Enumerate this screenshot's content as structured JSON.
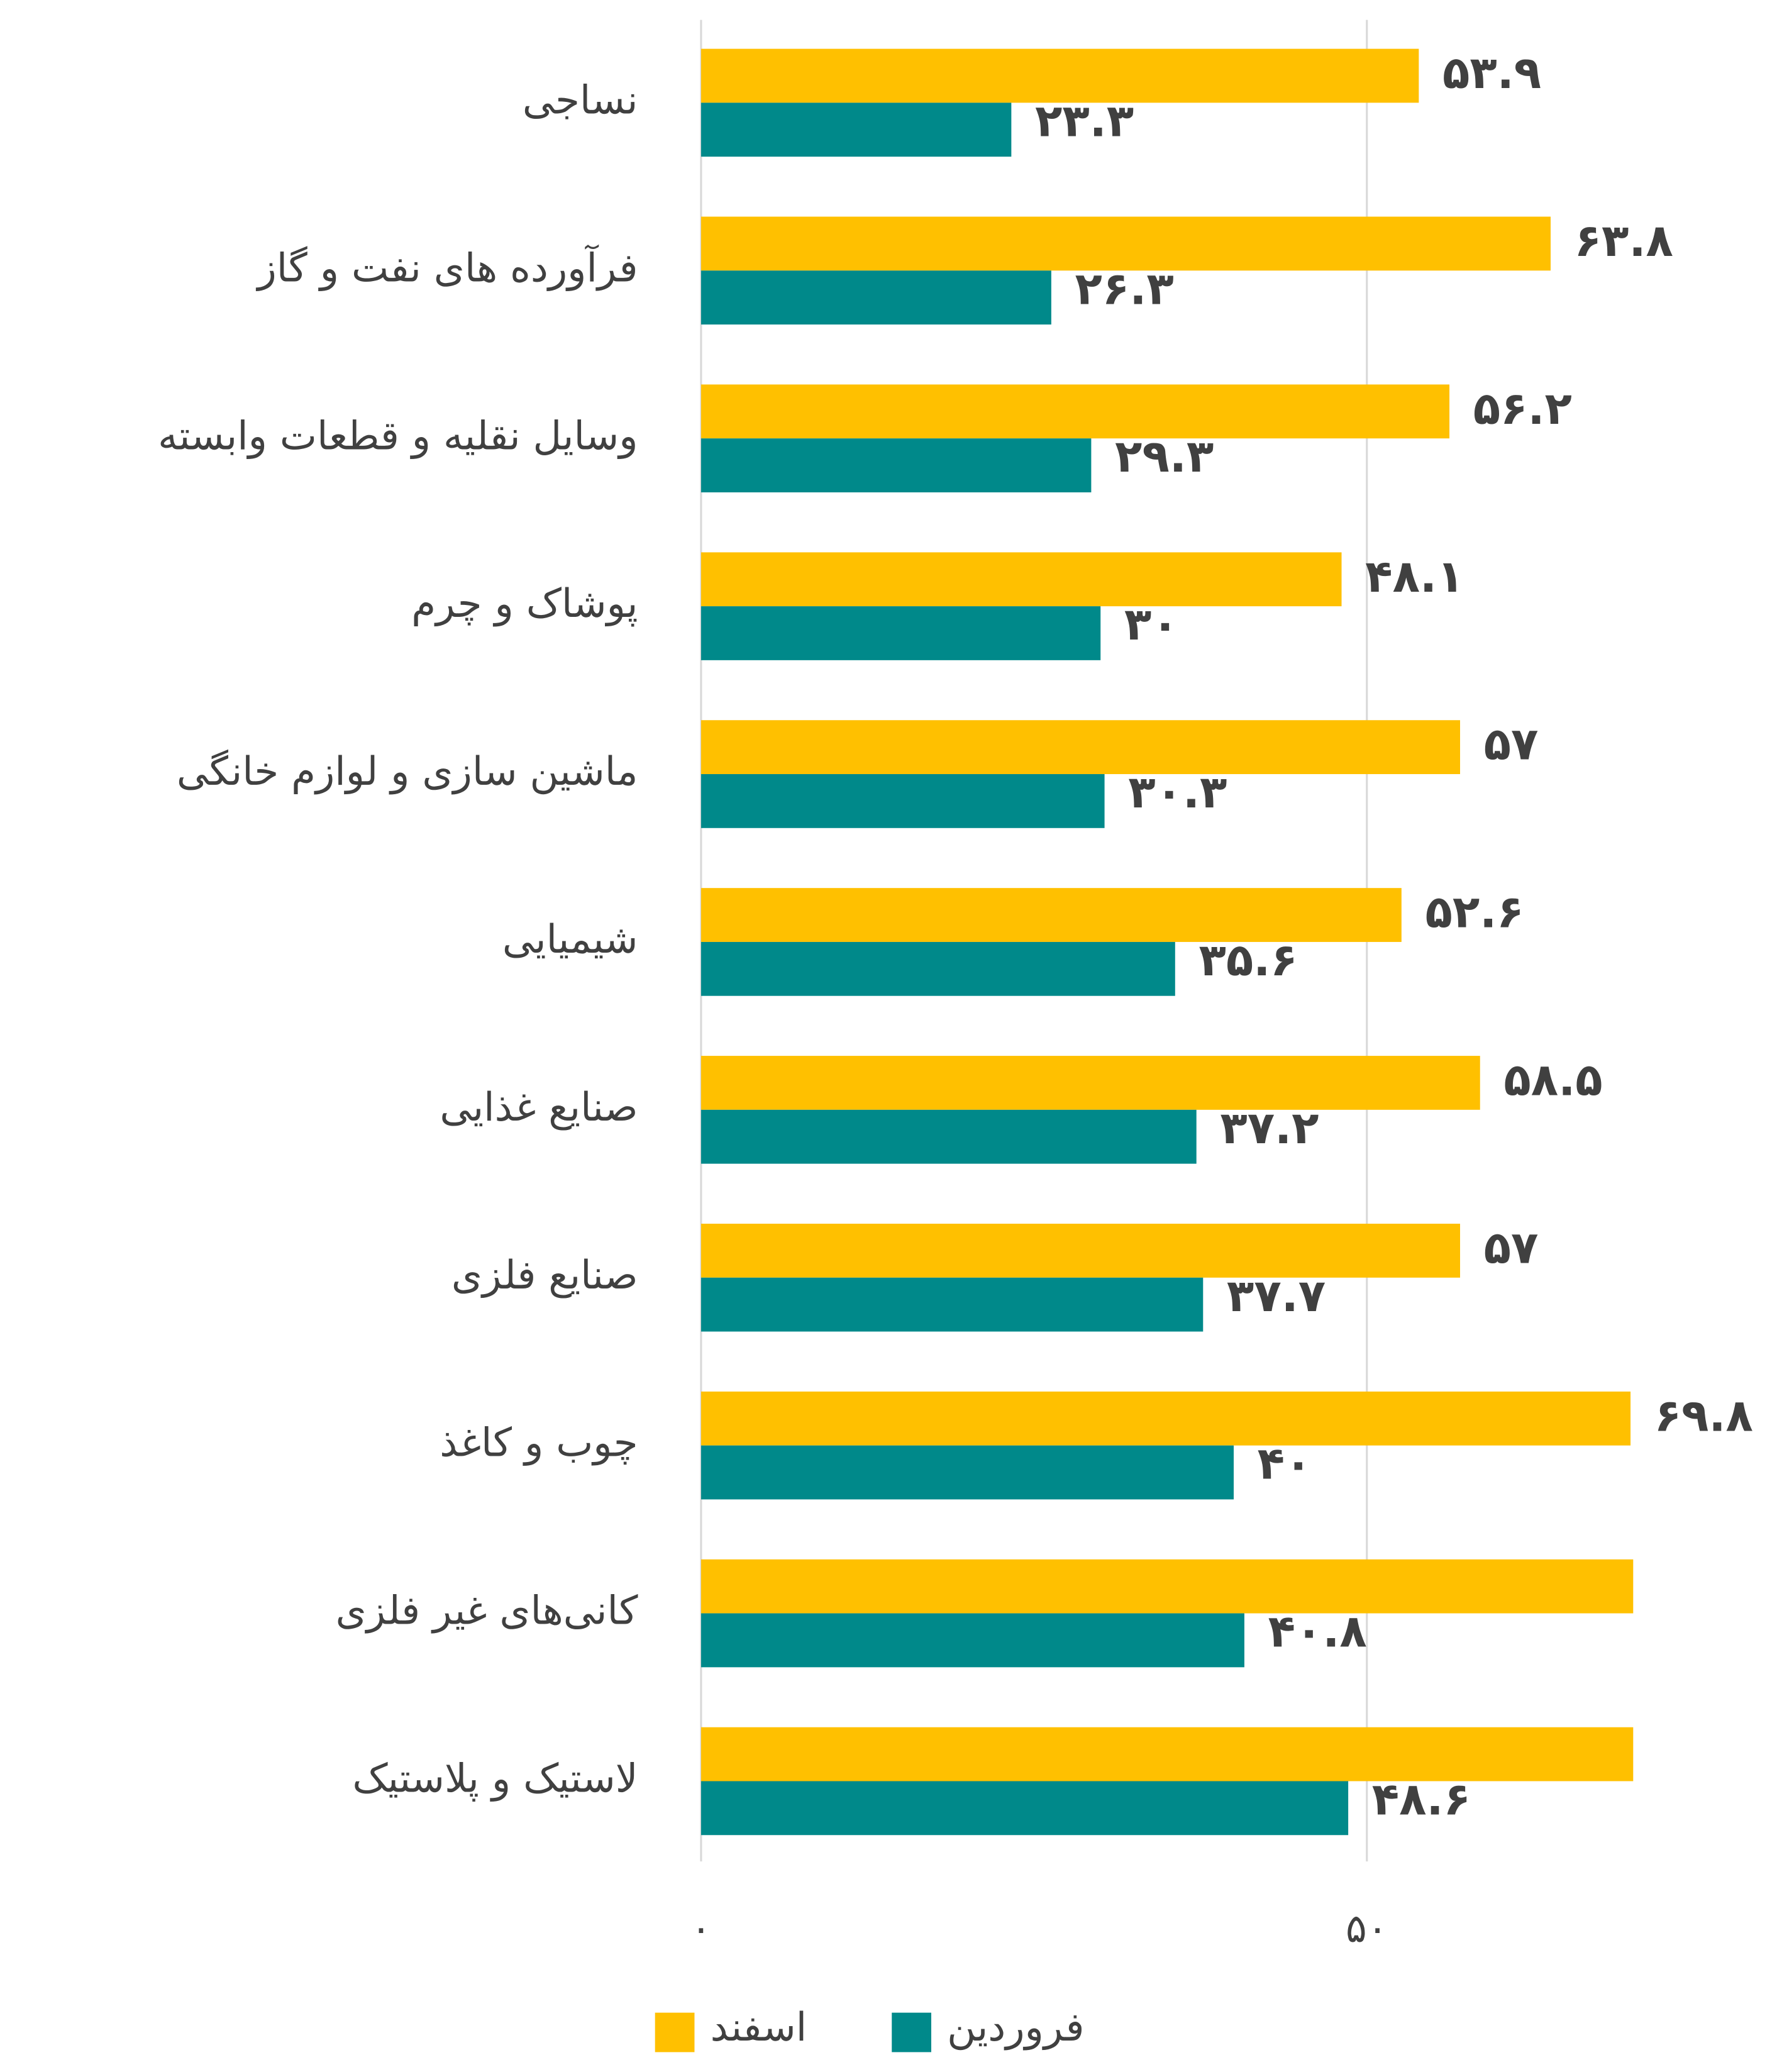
{
  "chart_data": {
    "type": "bar",
    "orientation": "horizontal",
    "categories": [
      "نساجی",
      "فرآورده های نفت و گاز",
      "وسایل نقلیه و قطعات وابسته",
      "پوشاک و چرم",
      "ماشین سازی و لوازم خانگی",
      "شیمیایی",
      "صنایع غذایی",
      "صنایع فلزی",
      "چوب و کاغذ",
      "کانی‌های غیر فلزی",
      "لاستیک و پلاستیک"
    ],
    "series": [
      {
        "name": "اسفند",
        "color": "#FFC000",
        "values": [
          53.9,
          63.8,
          56.2,
          48.1,
          57,
          52.6,
          58.5,
          57,
          69.8,
          70,
          70
        ],
        "value_labels": [
          "۵۳.۹",
          "۶۳.۸",
          "۵۶.۲",
          "۴۸.۱",
          "۵۷",
          "۵۲.۶",
          "۵۸.۵",
          "۵۷",
          "۶۹.۸",
          null,
          null
        ]
      },
      {
        "name": "فروردین",
        "color": "#00898A",
        "values": [
          23.3,
          26.3,
          29.3,
          30,
          30.3,
          35.6,
          37.2,
          37.7,
          40,
          40.8,
          48.6
        ],
        "value_labels": [
          "۲۳.۳",
          "۲۶.۳",
          "۲۹.۳",
          "۳۰",
          "۳۰.۳",
          "۳۵.۶",
          "۳۷.۲",
          "۳۷.۷",
          "۴۰",
          "۴۰.۸",
          "۴۸.۶"
        ]
      }
    ],
    "xlim": [
      0,
      80.8
    ],
    "xticks": [
      {
        "value": 0,
        "label": "۰"
      },
      {
        "value": 50,
        "label": "۵۰"
      }
    ],
    "grid": true,
    "legend": "bottom"
  }
}
